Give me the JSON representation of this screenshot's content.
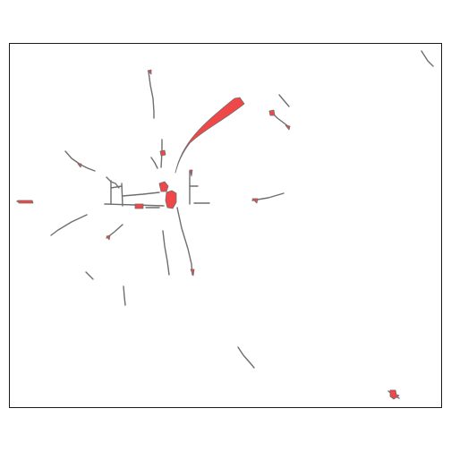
{
  "map": {
    "background_color": "#ffffff",
    "frame_color": "#1a1a1a",
    "line_color": "#6e6e6e",
    "fill_color": "#f04848"
  }
}
